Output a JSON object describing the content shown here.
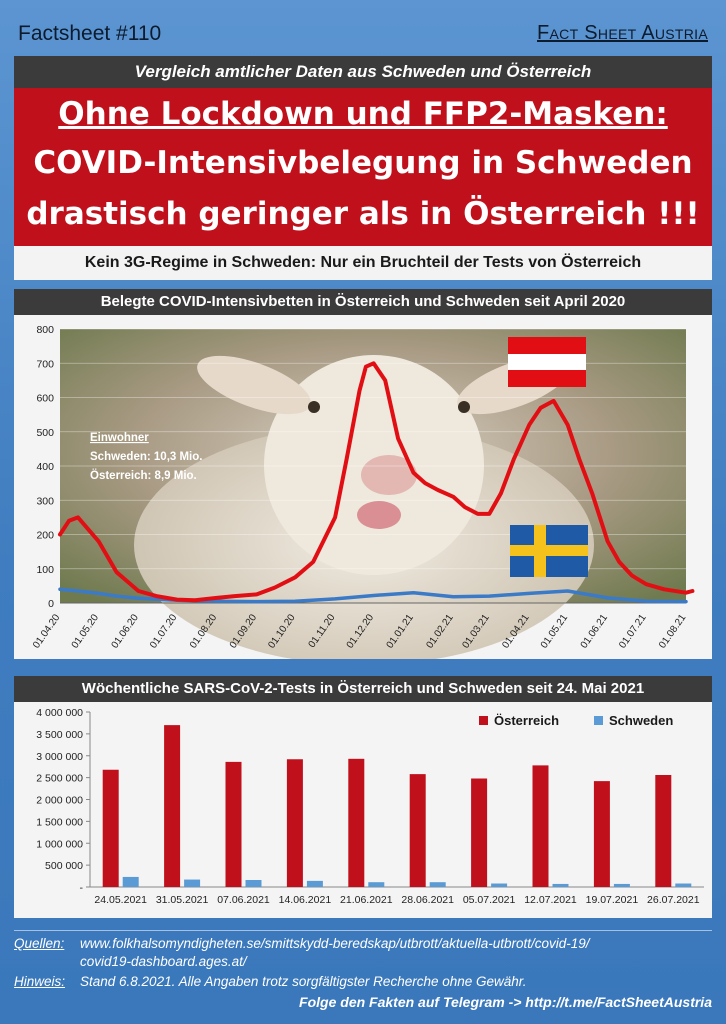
{
  "header": {
    "factsheet_number": "Factsheet #110",
    "brand": "Fact Sheet Austria",
    "subtitle": "Vergleich amtlicher Daten aus Schweden und Österreich",
    "headline_1": "Ohne Lockdown und FFP2-Masken:",
    "headline_2": "COVID-Intensivbelegung in Schweden",
    "headline_3": "drastisch geringer als in Österreich !!!",
    "subheadline": "Kein 3G-Regime in Schweden: Nur ein Bruchteil der Tests von Österreich"
  },
  "colors": {
    "austria_red": "#e10f14",
    "sweden_blue": "#3a7ac7",
    "header_red": "#c0101c",
    "dark_bar": "#3b3b3b"
  },
  "inhabitants": {
    "heading": "Einwohner",
    "sweden": "Schweden: 10,3 Mio.",
    "austria": "Österreich:   8,9 Mio."
  },
  "chart_data": [
    {
      "type": "line",
      "title": "Belegte COVID-Intensivbetten in Österreich und Schweden seit April 2020",
      "x_ticks": [
        "01.04.20",
        "01.05.20",
        "01.06.20",
        "01.07.20",
        "01.08.20",
        "01.09.20",
        "01.10.20",
        "01.11.20",
        "01.12.20",
        "01.01.21",
        "01.02.21",
        "01.03.21",
        "01.04.21",
        "01.05.21",
        "01.06.21",
        "01.07.21",
        "01.08.21"
      ],
      "ylim": [
        0,
        800
      ],
      "y_ticks": [
        0,
        100,
        200,
        300,
        400,
        500,
        600,
        700,
        800
      ],
      "grid": true,
      "series": [
        {
          "name": "Österreich",
          "x": [
            "01.04.20",
            "08.04.20",
            "15.04.20",
            "01.05.20",
            "15.05.20",
            "01.06.20",
            "15.06.20",
            "01.07.20",
            "15.07.20",
            "01.08.20",
            "15.08.20",
            "01.09.20",
            "15.09.20",
            "01.10.20",
            "15.10.20",
            "01.11.20",
            "10.11.20",
            "20.11.20",
            "25.11.20",
            "01.12.20",
            "10.12.20",
            "20.12.20",
            "01.01.21",
            "10.01.21",
            "20.01.21",
            "01.02.21",
            "10.02.21",
            "20.02.21",
            "01.03.21",
            "10.03.21",
            "20.03.21",
            "01.04.21",
            "10.04.21",
            "20.04.21",
            "01.05.21",
            "10.05.21",
            "20.05.21",
            "01.06.21",
            "10.06.21",
            "20.06.21",
            "01.07.21",
            "15.07.21",
            "01.08.21",
            "06.08.21"
          ],
          "y": [
            200,
            240,
            250,
            180,
            90,
            35,
            20,
            10,
            8,
            15,
            20,
            25,
            45,
            75,
            120,
            250,
            420,
            620,
            690,
            700,
            650,
            480,
            380,
            350,
            330,
            310,
            280,
            260,
            260,
            320,
            420,
            520,
            570,
            590,
            520,
            420,
            320,
            180,
            120,
            80,
            55,
            40,
            30,
            35
          ]
        },
        {
          "name": "Schweden",
          "x": [
            "01.04.20",
            "15.04.20",
            "01.05.20",
            "15.05.20",
            "01.06.20",
            "01.07.20",
            "01.08.20",
            "01.09.20",
            "01.10.20",
            "01.11.20",
            "01.12.20",
            "01.01.21",
            "01.02.21",
            "01.03.21",
            "01.04.21",
            "01.05.21",
            "01.06.21",
            "01.07.21",
            "01.08.21"
          ],
          "y": [
            40,
            35,
            28,
            20,
            14,
            8,
            5,
            4,
            5,
            12,
            22,
            30,
            18,
            20,
            28,
            35,
            15,
            5,
            4
          ]
        }
      ]
    },
    {
      "type": "bar",
      "title": "Wöchentliche SARS-CoV-2-Tests in Österreich und Schweden seit 24. Mai 2021",
      "categories": [
        "24.05.2021",
        "31.05.2021",
        "07.06.2021",
        "14.06.2021",
        "21.06.2021",
        "28.06.2021",
        "05.07.2021",
        "12.07.2021",
        "19.07.2021",
        "26.07.2021"
      ],
      "ylim": [
        0,
        4000000
      ],
      "y_ticks": [
        "-",
        "500 000",
        "1 000 000",
        "1 500 000",
        "2 000 000",
        "2 500 000",
        "3 000 000",
        "3 500 000",
        "4 000 000"
      ],
      "legend": "top-right",
      "series": [
        {
          "name": "Österreich",
          "values": [
            2680000,
            3700000,
            2860000,
            2920000,
            2930000,
            2580000,
            2480000,
            2780000,
            2420000,
            2560000
          ]
        },
        {
          "name": "Schweden",
          "values": [
            230000,
            170000,
            160000,
            140000,
            110000,
            110000,
            80000,
            70000,
            70000,
            80000
          ]
        }
      ]
    }
  ],
  "footer": {
    "sources_label": "Quellen:",
    "sources_1": "www.folkhalsomyndigheten.se/smittskydd-beredskap/utbrott/aktuella-utbrott/covid-19/",
    "sources_2": "covid19-dashboard.ages.at/",
    "note_label": "Hinweis:",
    "note": "Stand 6.8.2021. Alle Angaben trotz sorgfältigster Recherche ohne Gewähr.",
    "telegram": "Folge den Fakten auf Telegram  ->  http://t.me/FactSheetAustria"
  }
}
